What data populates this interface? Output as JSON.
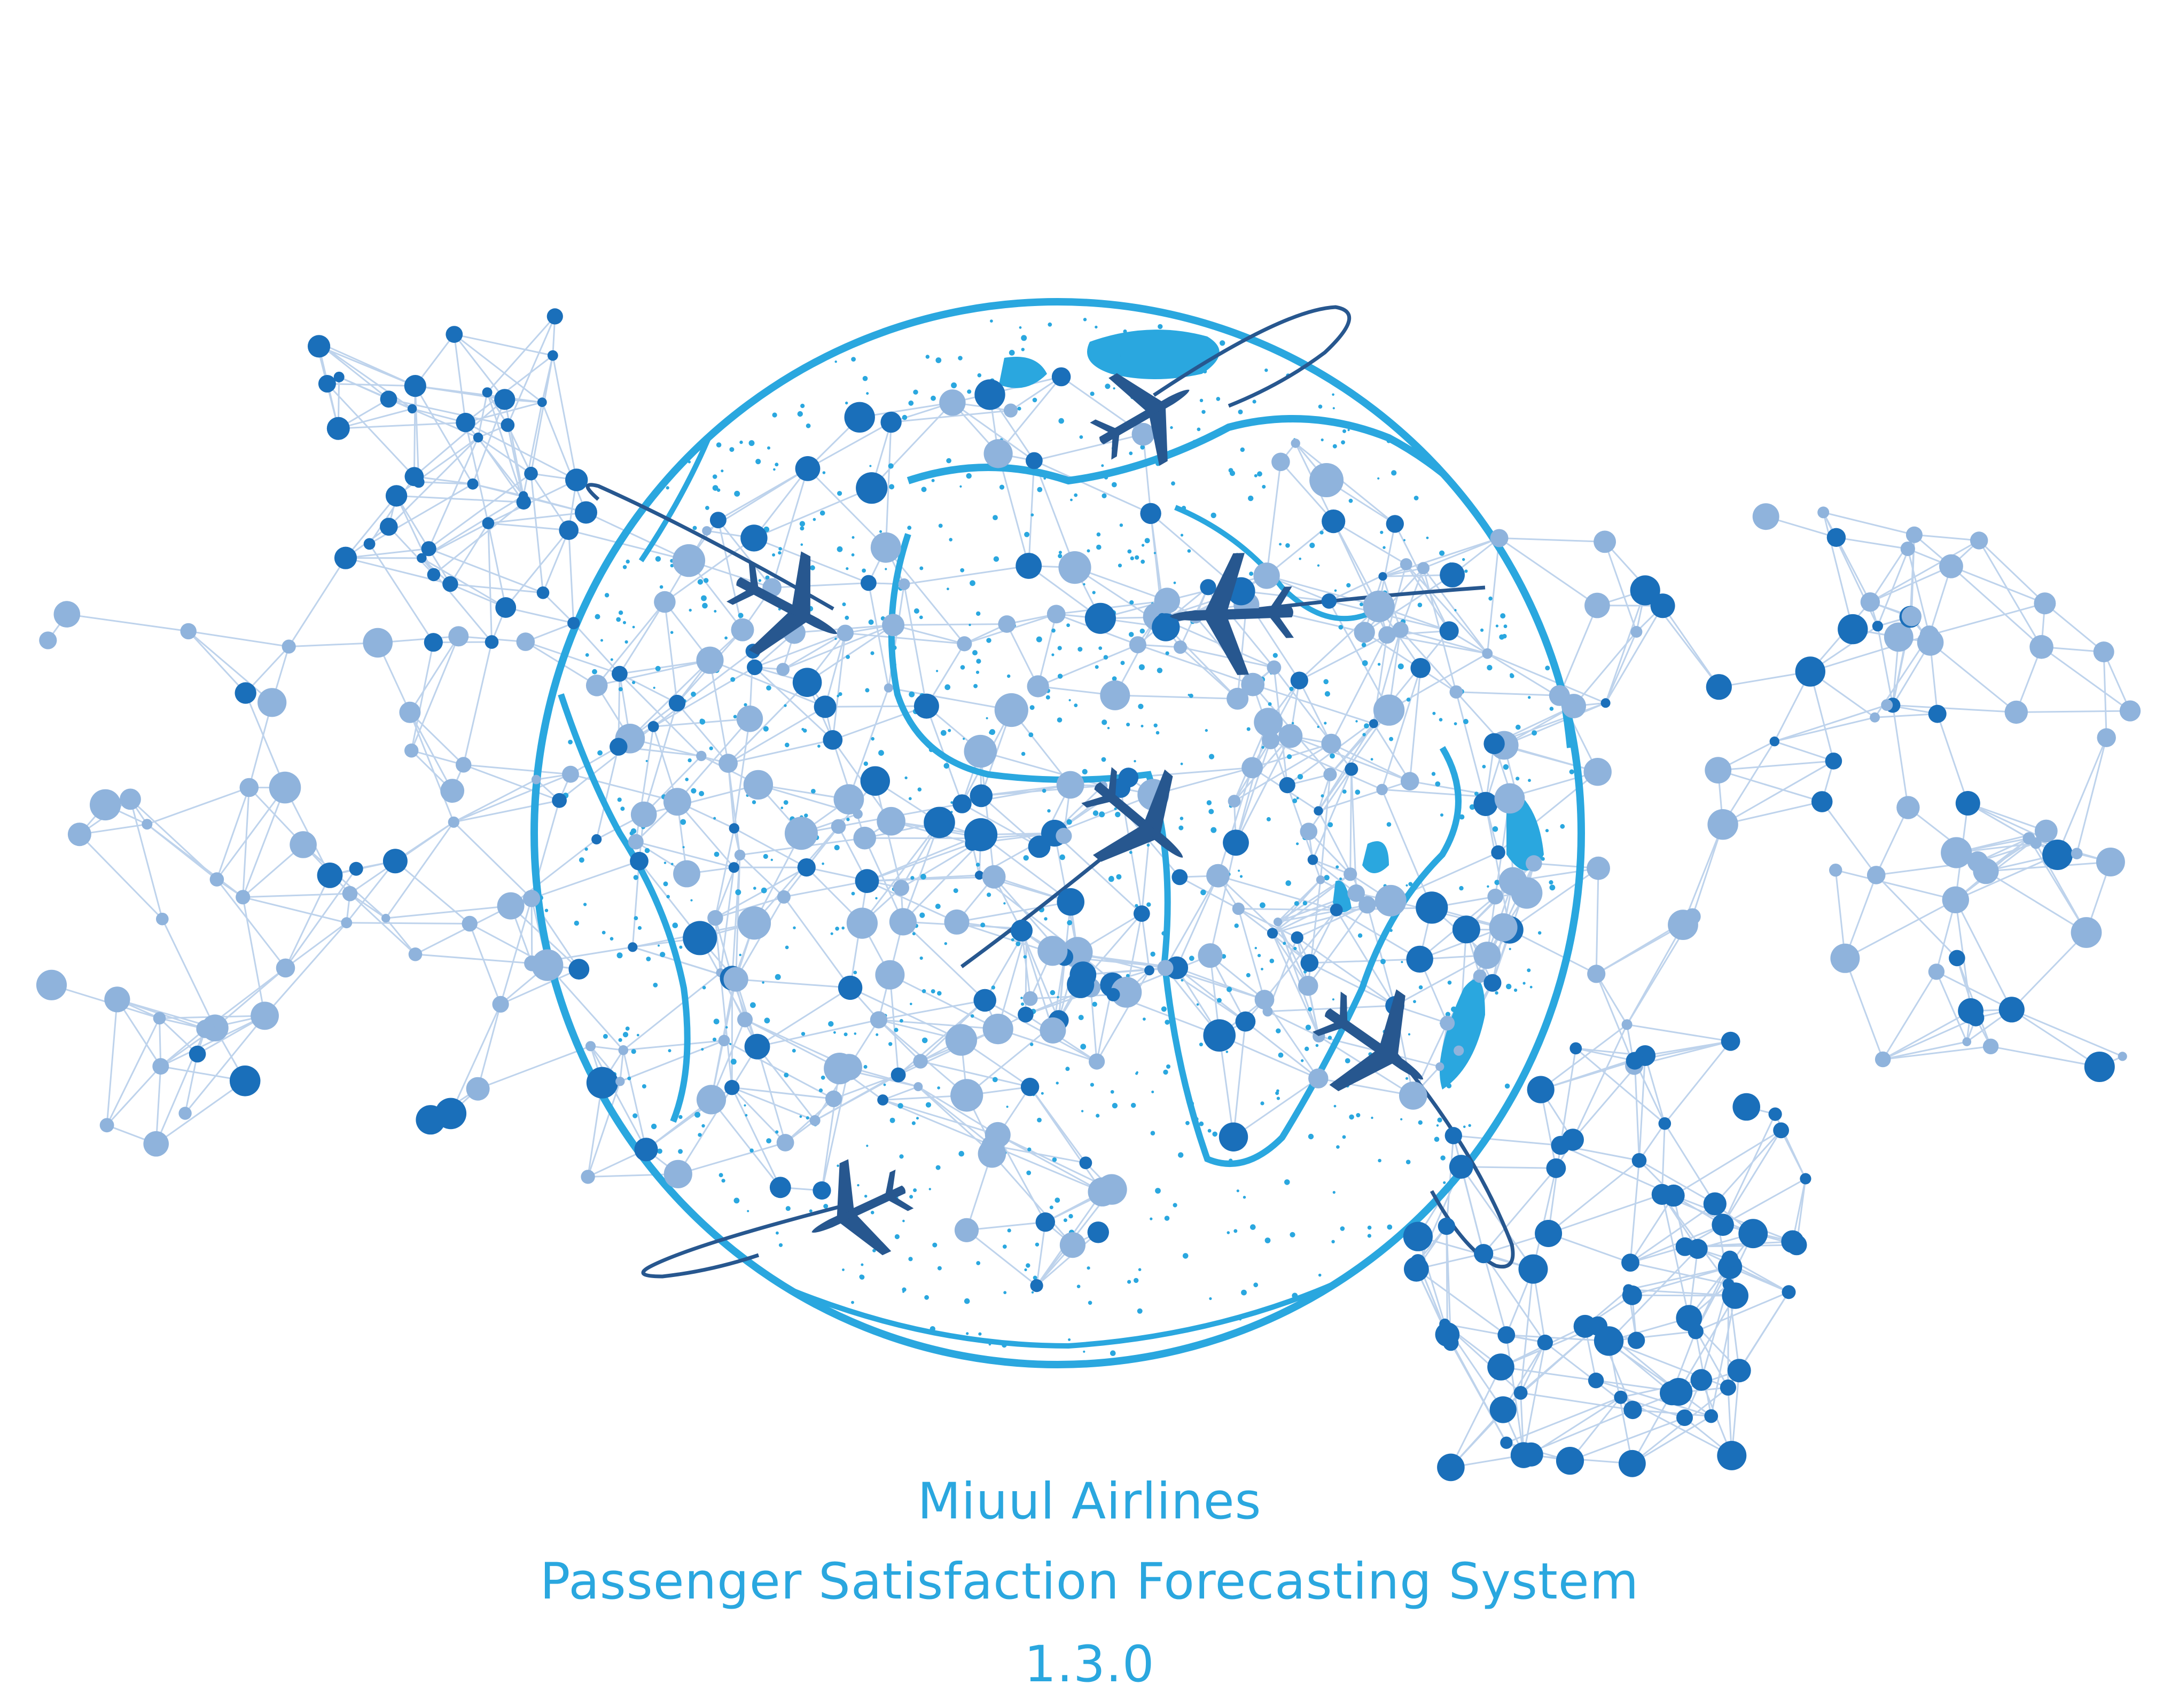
{
  "splash": {
    "brand": "Miuul Airlines",
    "product": "Passenger Satisfaction Forecasting System",
    "version": "1.3.0"
  },
  "artwork": {
    "icons": [
      "globe-network-icon",
      "airplane-icon"
    ],
    "colors": {
      "land": "#2aa7df",
      "node_dark": "#1a6fba",
      "node_light": "#8fb3dc",
      "line": "#a9c5e6",
      "plane": "#27578f",
      "text": "#2aa7df"
    }
  }
}
